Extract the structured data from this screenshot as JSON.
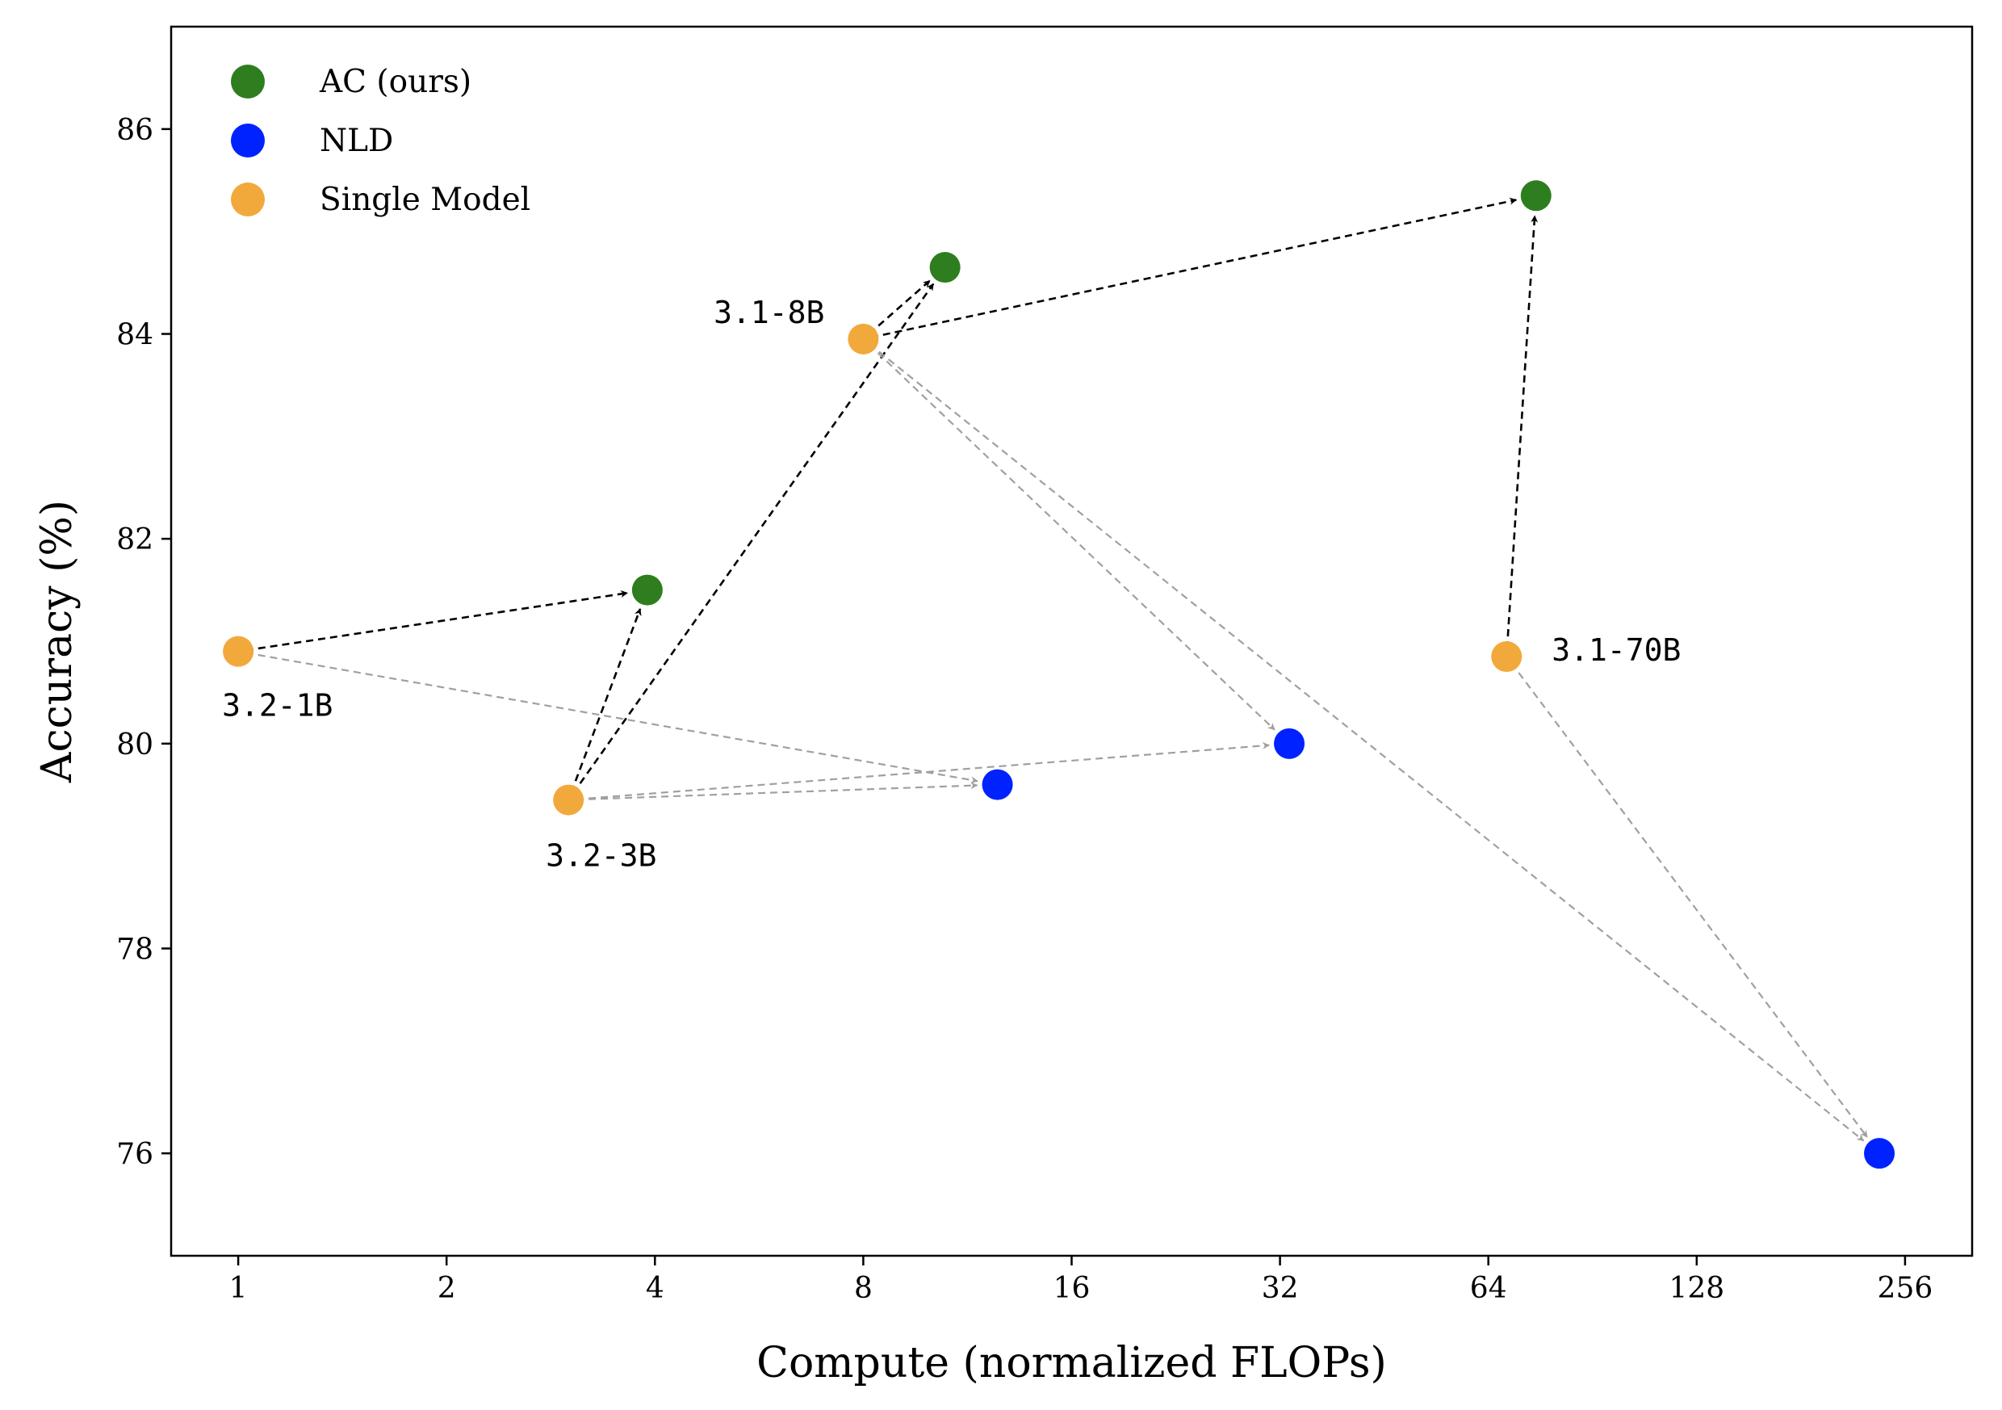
{
  "chart_data": {
    "type": "scatter",
    "xlabel": "Compute (normalized FLOPs)",
    "ylabel": "Accuracy (%)",
    "x_scale": "log2",
    "xlim": [
      0.8,
      320
    ],
    "ylim": [
      75,
      87
    ],
    "x_ticks": [
      1,
      2,
      4,
      8,
      16,
      32,
      64,
      128,
      256
    ],
    "x_tick_labels": [
      "1",
      "2",
      "4",
      "8",
      "16",
      "32",
      "64",
      "128",
      "256"
    ],
    "y_ticks": [
      76,
      78,
      80,
      82,
      84,
      86
    ],
    "y_tick_labels": [
      "76",
      "78",
      "80",
      "82",
      "84",
      "86"
    ],
    "grid": false,
    "legend_position": "top-left",
    "series": [
      {
        "name": "AC (ours)",
        "color": "#2e7d1e",
        "points": [
          {
            "id": "ac1",
            "x": 3.9,
            "y": 81.5
          },
          {
            "id": "ac2",
            "x": 10.5,
            "y": 84.65
          },
          {
            "id": "ac3",
            "x": 75,
            "y": 85.35
          }
        ]
      },
      {
        "name": "NLD",
        "color": "#0022ff",
        "points": [
          {
            "id": "nld1",
            "x": 12.5,
            "y": 79.6
          },
          {
            "id": "nld2",
            "x": 33,
            "y": 80.0
          },
          {
            "id": "nld3",
            "x": 235,
            "y": 76.0
          }
        ]
      },
      {
        "name": "Single Model",
        "color": "#f2a93b",
        "points": [
          {
            "id": "s1",
            "x": 1.0,
            "y": 80.9,
            "label": "3.2-1B"
          },
          {
            "id": "s3",
            "x": 3.0,
            "y": 79.45,
            "label": "3.2-3B"
          },
          {
            "id": "s8",
            "x": 8.0,
            "y": 83.95,
            "label": "3.1-8B"
          },
          {
            "id": "s70",
            "x": 68,
            "y": 80.85,
            "label": "3.1-70B"
          }
        ]
      }
    ],
    "arrows": [
      {
        "from": "s1",
        "to": "ac1",
        "style": "black"
      },
      {
        "from": "s3",
        "to": "ac1",
        "style": "black"
      },
      {
        "from": "s3",
        "to": "ac2",
        "style": "black"
      },
      {
        "from": "s8",
        "to": "ac2",
        "style": "black"
      },
      {
        "from": "s8",
        "to": "ac3",
        "style": "black"
      },
      {
        "from": "s70",
        "to": "ac3",
        "style": "black"
      },
      {
        "from": "s1",
        "to": "nld1",
        "style": "gray"
      },
      {
        "from": "s3",
        "to": "nld1",
        "style": "gray"
      },
      {
        "from": "s3",
        "to": "nld2",
        "style": "gray"
      },
      {
        "from": "s8",
        "to": "nld2",
        "style": "gray"
      },
      {
        "from": "s8",
        "to": "nld3",
        "style": "gray"
      },
      {
        "from": "s70",
        "to": "nld3",
        "style": "gray"
      }
    ]
  }
}
